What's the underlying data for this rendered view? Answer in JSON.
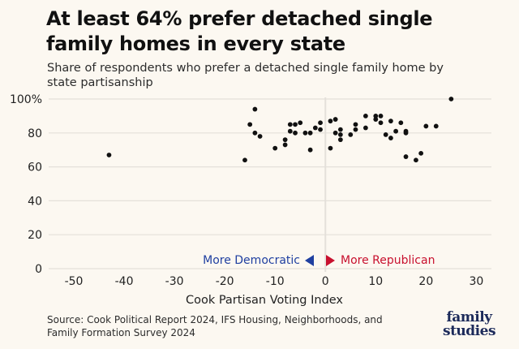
{
  "header": {
    "title": "At least 64% prefer detached single family homes in every state",
    "subtitle": "Share of respondents who prefer a detached single family home by state partisanship"
  },
  "footer": {
    "source": "Source: Cook Political Report 2024, IFS Housing, Neighborhoods, and Family Formation Survey 2024",
    "logo_line1": "family",
    "logo_line2": "studies"
  },
  "colors": {
    "point": "#111111",
    "grid": "#e4e0da",
    "democratic": "#1f3fa0",
    "republican": "#c8102e"
  },
  "chart_data": {
    "type": "scatter",
    "title": "At least 64% prefer detached single family homes in every state",
    "subtitle": "Share of respondents who prefer a detached single family home by state partisanship",
    "xlabel": "Cook Partisan Voting Index",
    "ylabel": "",
    "xlim": [
      -55,
      33
    ],
    "ylim": [
      0,
      100
    ],
    "xticks": [
      -50,
      -40,
      -30,
      -20,
      -10,
      0,
      10,
      20,
      30
    ],
    "yticks": [
      0,
      20,
      40,
      60,
      80,
      100
    ],
    "ytick_labels": [
      "0",
      "20",
      "40",
      "60",
      "80",
      "100%"
    ],
    "grid": true,
    "annotations": {
      "left": "More Democratic",
      "right": "More Republican"
    },
    "points": [
      [
        -43,
        67
      ],
      [
        -16,
        64
      ],
      [
        -15,
        85
      ],
      [
        -14,
        94
      ],
      [
        -14,
        80
      ],
      [
        -13,
        78
      ],
      [
        -10,
        71
      ],
      [
        -8,
        73
      ],
      [
        -8,
        76
      ],
      [
        -7,
        81
      ],
      [
        -7,
        85
      ],
      [
        -6,
        85
      ],
      [
        -6,
        80
      ],
      [
        -5,
        86
      ],
      [
        -4,
        80
      ],
      [
        -3,
        80
      ],
      [
        -3,
        70
      ],
      [
        -2,
        83
      ],
      [
        -1,
        82
      ],
      [
        -1,
        86
      ],
      [
        1,
        71
      ],
      [
        1,
        87
      ],
      [
        2,
        88
      ],
      [
        2,
        80
      ],
      [
        3,
        79
      ],
      [
        3,
        76
      ],
      [
        3,
        82
      ],
      [
        5,
        79
      ],
      [
        6,
        85
      ],
      [
        6,
        82
      ],
      [
        8,
        83
      ],
      [
        8,
        90
      ],
      [
        10,
        90
      ],
      [
        10,
        88
      ],
      [
        11,
        90
      ],
      [
        11,
        86
      ],
      [
        12,
        79
      ],
      [
        13,
        87
      ],
      [
        13,
        77
      ],
      [
        14,
        81
      ],
      [
        15,
        86
      ],
      [
        16,
        80
      ],
      [
        16,
        81
      ],
      [
        16,
        66
      ],
      [
        18,
        64
      ],
      [
        19,
        68
      ],
      [
        20,
        84
      ],
      [
        22,
        84
      ],
      [
        25,
        100
      ]
    ]
  }
}
